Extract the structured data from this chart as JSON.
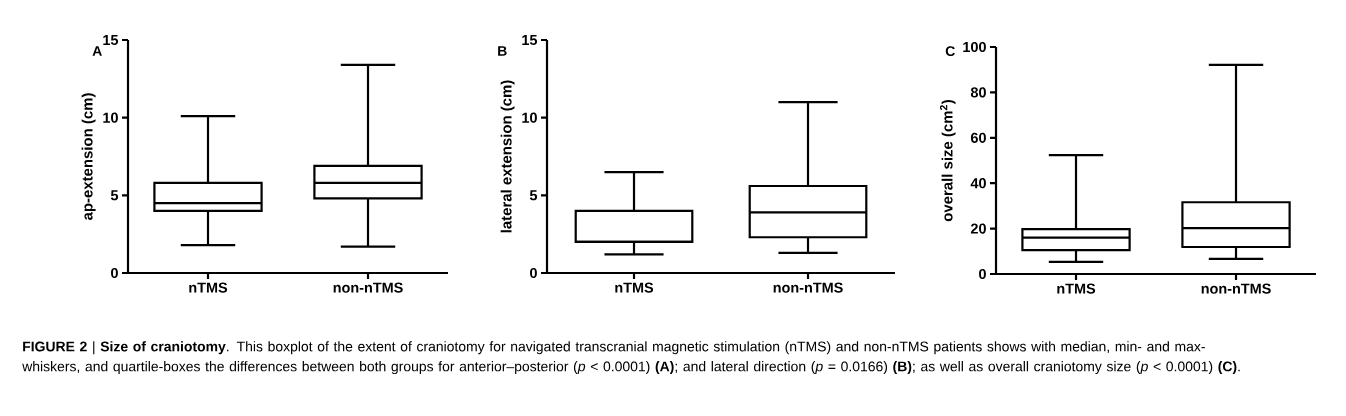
{
  "chart_data": [
    {
      "type": "box",
      "title": "A",
      "ylabel": "ap-extension (cm)",
      "categories": [
        "nTMS",
        "non-nTMS"
      ],
      "ylim": [
        0,
        15
      ],
      "yticks": [
        0,
        5,
        10,
        15
      ],
      "series": [
        {
          "color": "#000000",
          "boxes": [
            {
              "low": 1.8,
              "q1": 4.0,
              "median": 4.5,
              "q3": 5.8,
              "high": 10.1
            },
            {
              "low": 1.7,
              "q1": 4.8,
              "median": 5.8,
              "q3": 6.9,
              "high": 13.4
            }
          ]
        }
      ],
      "annotations": [
        "**FIGURE 2** | **Size of craniotomy**. This boxplot of the extent of craniotomy for navigated transcranial magnetic stimulation (nTMS) and non-nTMS patients shows with median, min- and max-whiskers, and quartile-boxes the differences between both groups for anterior–posterior (*p* < 0.0001) **(A)**; and lateral direction (*p* = 0.0166) **(B)**; as well as overall craniotomy size (*p* < 0.0001) **(C)**."
      ]
    },
    {
      "type": "box",
      "title": "B",
      "ylabel": "lateral extension (cm)",
      "categories": [
        "nTMS",
        "non-nTMS"
      ],
      "ylim": [
        0,
        15
      ],
      "yticks": [
        0,
        5,
        10,
        15
      ],
      "series": [
        {
          "color": "#000000",
          "boxes": [
            {
              "low": 1.2,
              "q1": 2.0,
              "median": 2.0,
              "q3": 4.0,
              "high": 6.5
            },
            {
              "low": 1.3,
              "q1": 2.3,
              "median": 3.9,
              "q3": 5.6,
              "high": 11.0
            }
          ]
        }
      ]
    },
    {
      "type": "box",
      "title": "C",
      "ylabel": "overall size (cm$^{2}$)",
      "categories": [
        "nTMS",
        "non-nTMS"
      ],
      "ylim": [
        0,
        100
      ],
      "yticks": [
        0,
        20,
        40,
        60,
        80,
        100
      ],
      "series": [
        {
          "color": "#000000",
          "boxes": [
            {
              "low": 5.3,
              "q1": 10.5,
              "median": 16,
              "q3": 19.8,
              "high": 52.4
            },
            {
              "low": 6.7,
              "q1": 11.9,
              "median": 20.2,
              "q3": 31.6,
              "high": 92.1
            }
          ]
        }
      ]
    }
  ]
}
